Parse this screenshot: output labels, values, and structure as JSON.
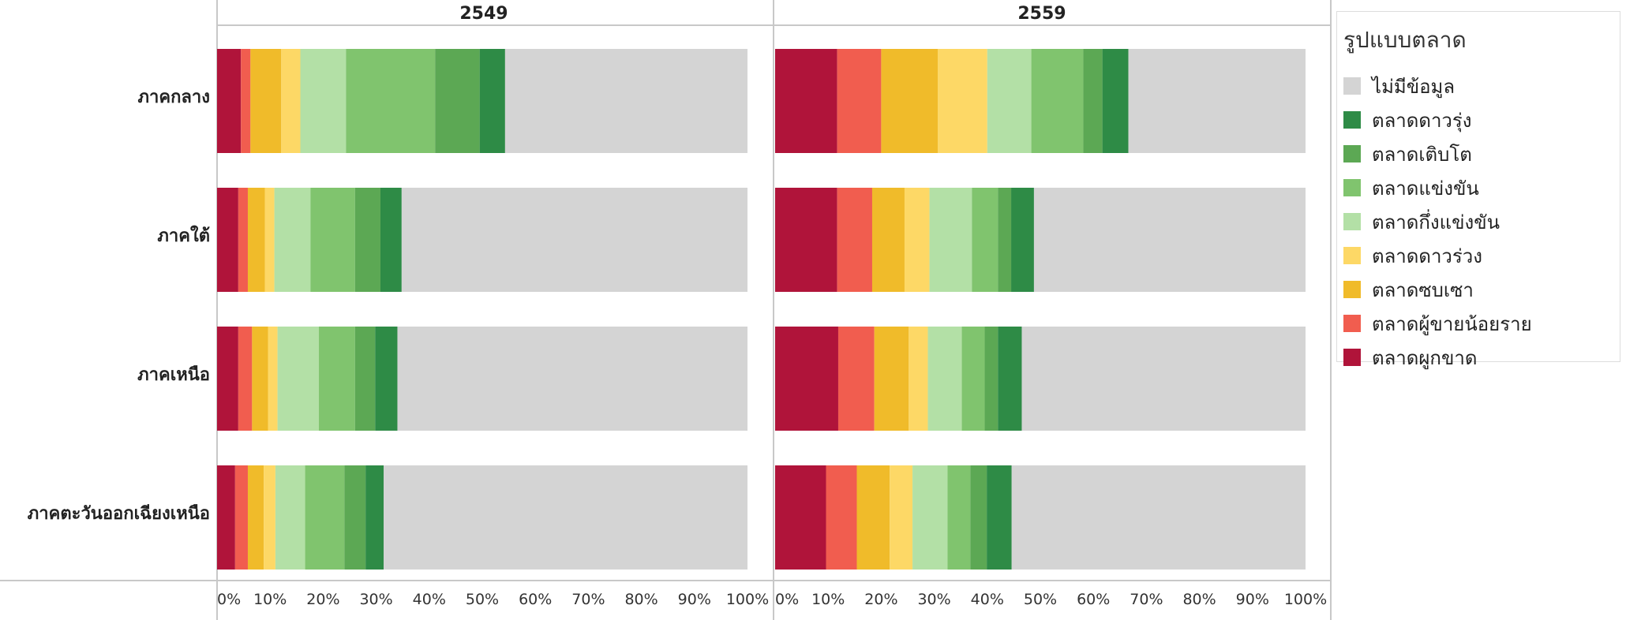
{
  "chart_data": {
    "type": "bar",
    "orientation": "horizontal",
    "stacked": "percent",
    "panels": [
      "2549",
      "2559"
    ],
    "categories": [
      "ภาคกลาง",
      "ภาคใต้",
      "ภาคเหนือ",
      "ภาคตะวันออกเฉียงเหนือ"
    ],
    "x_ticks": [
      "0%",
      "10%",
      "20%",
      "30%",
      "40%",
      "50%",
      "60%",
      "70%",
      "80%",
      "90%",
      "100%"
    ],
    "xlim": [
      0,
      100
    ],
    "legend": {
      "title": "รูปแบบตลาด",
      "placement": "right",
      "entries": [
        {
          "name": "ไม่มีข้อมูล",
          "color": "#d4d4d4"
        },
        {
          "name": "ตลาดดาวรุ่ง",
          "color": "#2e8b46"
        },
        {
          "name": "ตลาดเติบโต",
          "color": "#5ca854"
        },
        {
          "name": "ตลาดแข่งขัน",
          "color": "#80c46e"
        },
        {
          "name": "ตลาดกึ่งแข่งขัน",
          "color": "#b3e0a6"
        },
        {
          "name": "ตลาดดาวร่วง",
          "color": "#fdd866"
        },
        {
          "name": "ตลาดซบเซา",
          "color": "#f0bb2a"
        },
        {
          "name": "ตลาดผู้ขายน้อยราย",
          "color": "#f15d4f"
        },
        {
          "name": "ตลาดผูกขาด",
          "color": "#b0143a"
        }
      ]
    },
    "stack_order": [
      "ตลาดผูกขาด",
      "ตลาดผู้ขายน้อยราย",
      "ตลาดซบเซา",
      "ตลาดดาวร่วง",
      "ตลาดกึ่งแข่งขัน",
      "ตลาดแข่งขัน",
      "ตลาดเติบโต",
      "ตลาดดาวรุ่ง",
      "ไม่มีข้อมูล"
    ],
    "values": {
      "2549": [
        [
          4.5,
          1.8,
          5.8,
          3.6,
          8.6,
          16.8,
          8.4,
          4.8,
          45.7
        ],
        [
          4.0,
          1.8,
          3.2,
          1.8,
          6.8,
          8.4,
          4.8,
          4.0,
          65.2
        ],
        [
          4.0,
          2.6,
          3.0,
          1.8,
          7.8,
          6.8,
          3.8,
          4.2,
          66.0
        ],
        [
          3.4,
          2.4,
          3.0,
          2.2,
          5.6,
          7.4,
          4.0,
          3.4,
          68.6
        ]
      ],
      "2559": [
        [
          11.7,
          8.3,
          10.7,
          9.3,
          8.3,
          9.8,
          3.6,
          4.9,
          33.4
        ],
        [
          11.7,
          6.6,
          6.1,
          4.7,
          8.0,
          4.9,
          2.5,
          4.3,
          51.2
        ],
        [
          11.9,
          6.8,
          6.5,
          3.6,
          6.4,
          4.3,
          2.5,
          4.5,
          53.5
        ],
        [
          9.6,
          5.8,
          6.2,
          4.3,
          6.6,
          4.3,
          3.1,
          4.7,
          55.4
        ]
      ]
    }
  }
}
